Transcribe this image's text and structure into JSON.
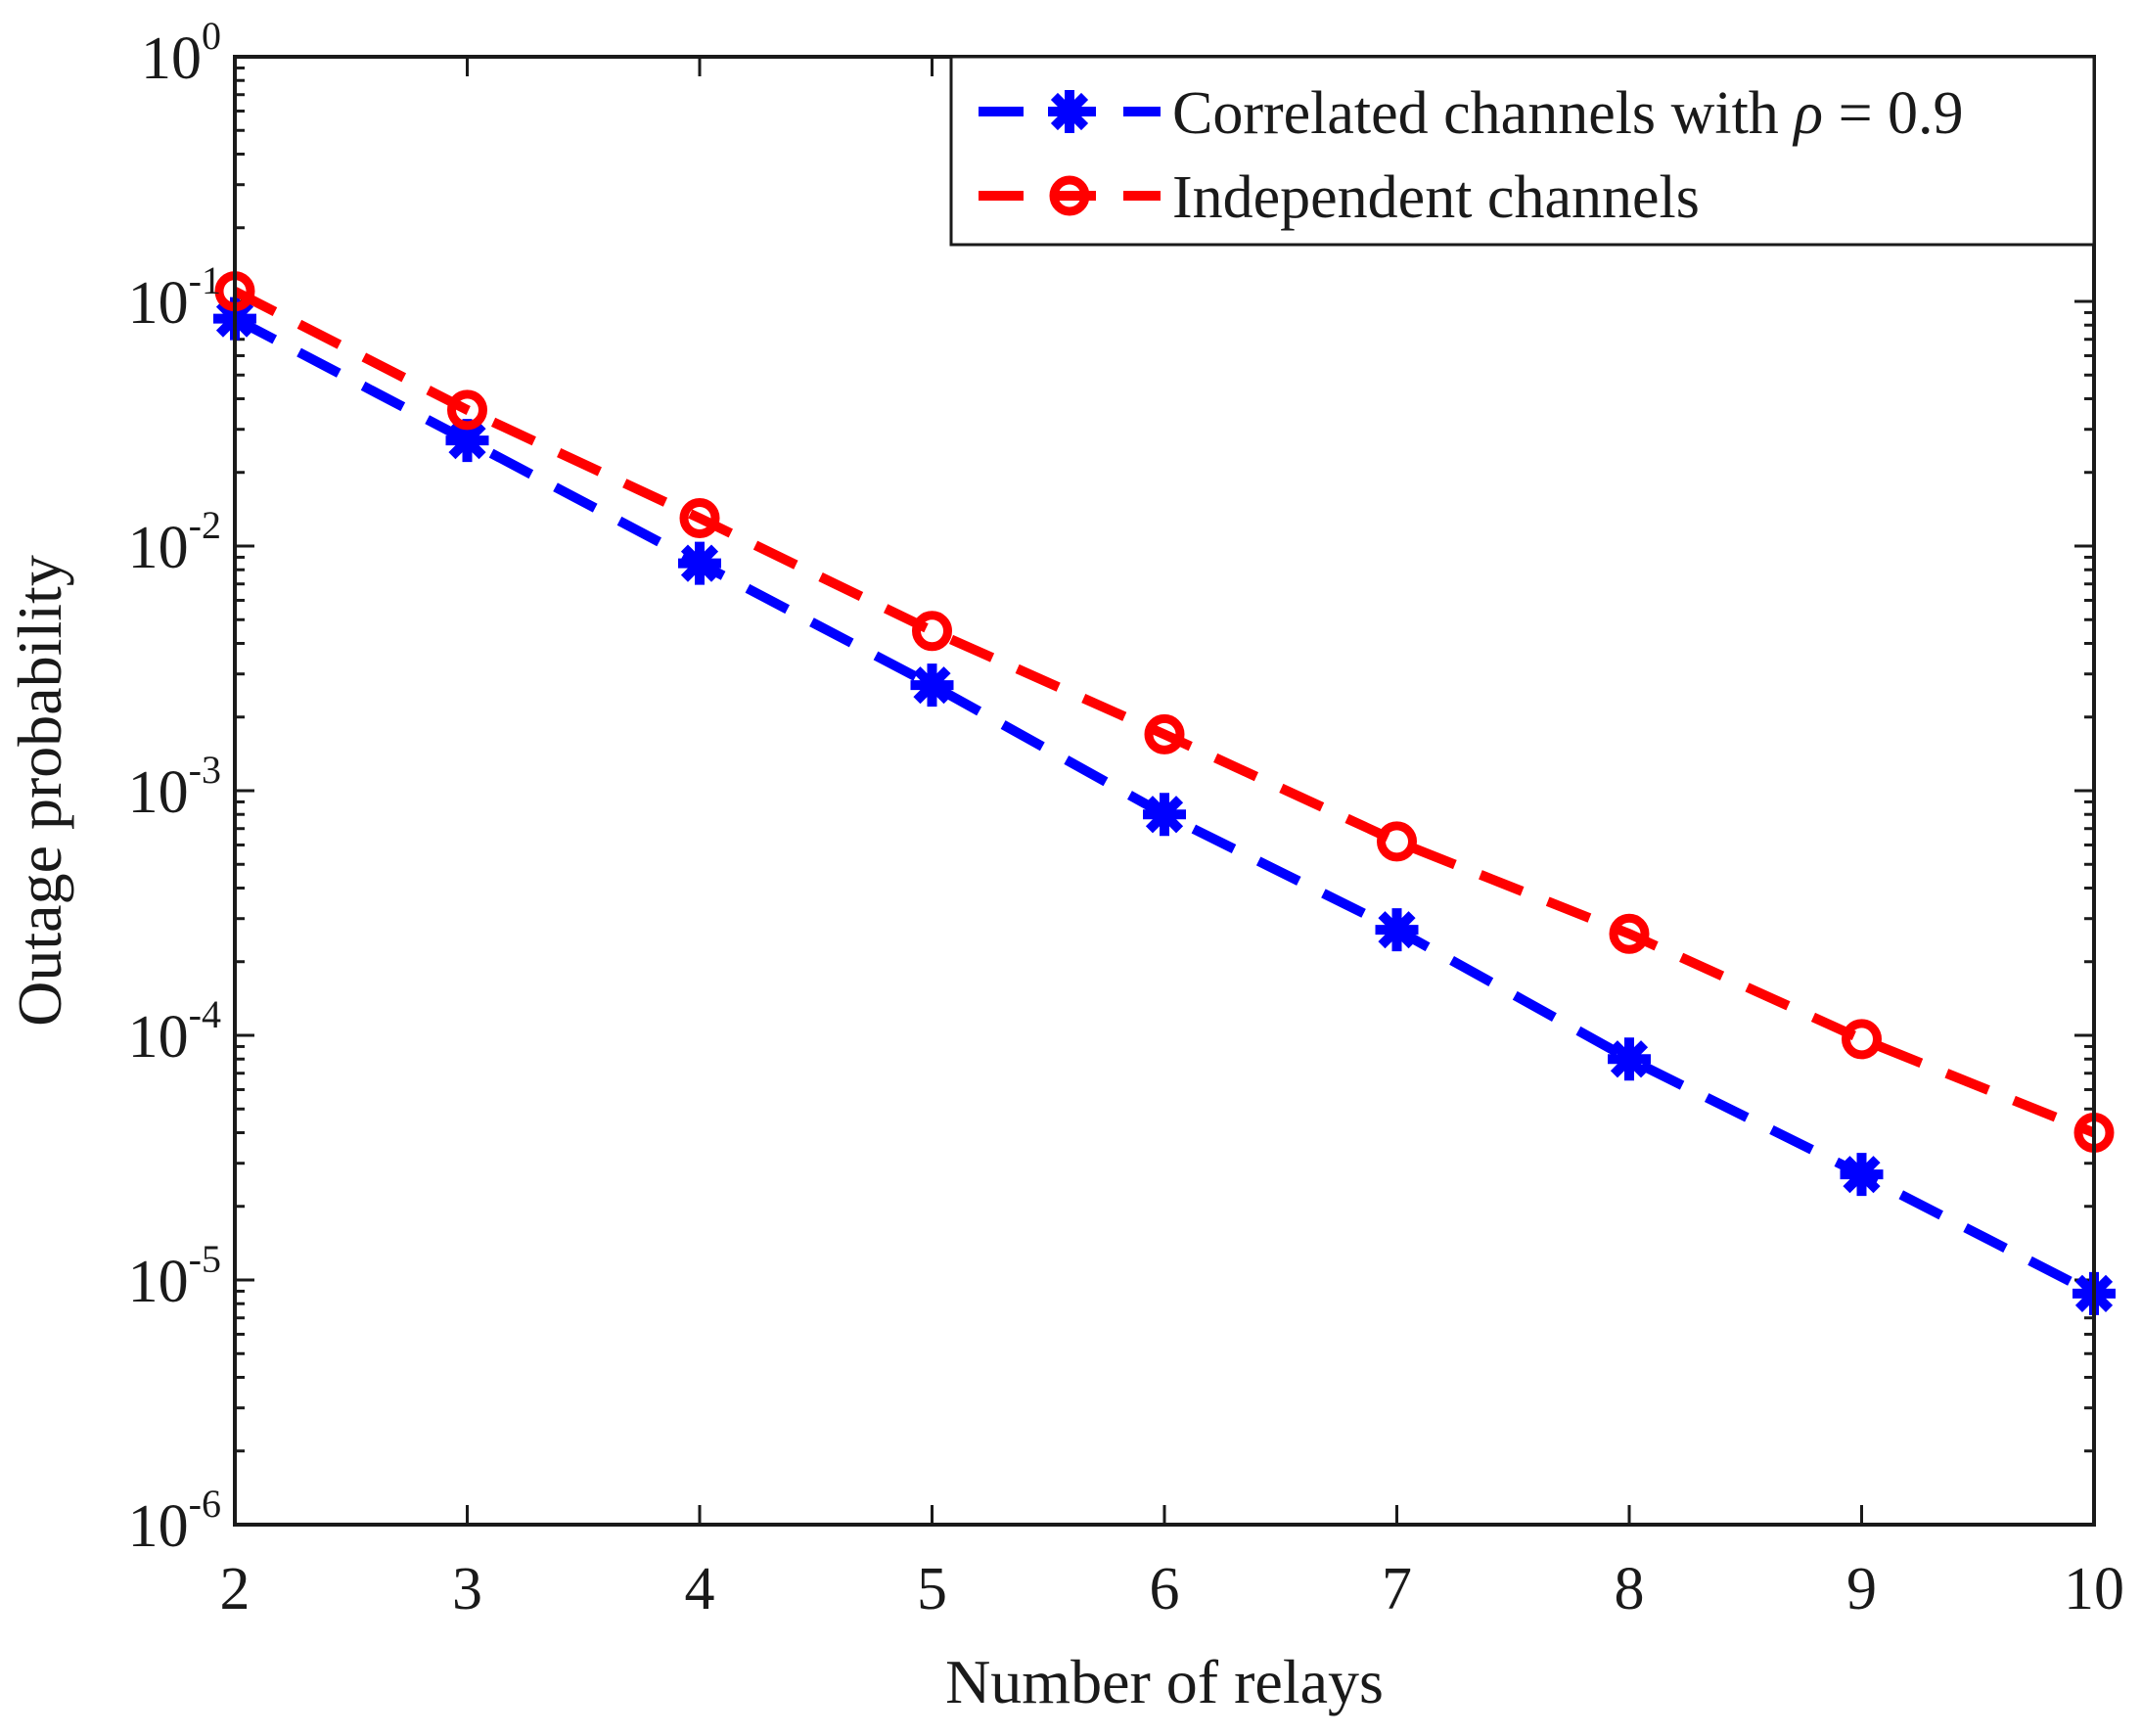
{
  "chart_data": {
    "type": "line",
    "title": "",
    "xlabel": "Number of relays",
    "ylabel": "Outage probability",
    "x": [
      2,
      3,
      4,
      5,
      6,
      7,
      8,
      9,
      10
    ],
    "xlim": [
      2,
      10
    ],
    "yscale": "log",
    "ylim": [
      1e-06,
      1
    ],
    "x_ticks": [
      "2",
      "3",
      "4",
      "5",
      "6",
      "7",
      "8",
      "9",
      "10"
    ],
    "y_ticks": [
      {
        "base": "10",
        "exp": "-6"
      },
      {
        "base": "10",
        "exp": "-5"
      },
      {
        "base": "10",
        "exp": "-4"
      },
      {
        "base": "10",
        "exp": "-3"
      },
      {
        "base": "10",
        "exp": "-2"
      },
      {
        "base": "10",
        "exp": "-1"
      },
      {
        "base": "10",
        "exp": "0"
      }
    ],
    "grid": false,
    "legend_position": "top-right",
    "series": [
      {
        "name": "Correlated channels with ρ = 0.9",
        "legend_prefix": "Correlated channels with ",
        "legend_symbol": "ρ",
        "legend_suffix": " = 0.9",
        "color": "#0000ff",
        "marker": "asterisk",
        "line_style": "dashed",
        "values": [
          0.085,
          0.027,
          0.0085,
          0.0027,
          0.0008,
          0.00027,
          8e-05,
          2.7e-05,
          8.8e-06
        ]
      },
      {
        "name": "Independent channels",
        "legend_prefix": "Independent channels",
        "legend_symbol": "",
        "legend_suffix": "",
        "color": "#ff0000",
        "marker": "circle",
        "line_style": "dashed",
        "values": [
          0.11,
          0.036,
          0.013,
          0.0045,
          0.0017,
          0.00062,
          0.00026,
          9.65e-05,
          4e-05
        ]
      }
    ]
  }
}
